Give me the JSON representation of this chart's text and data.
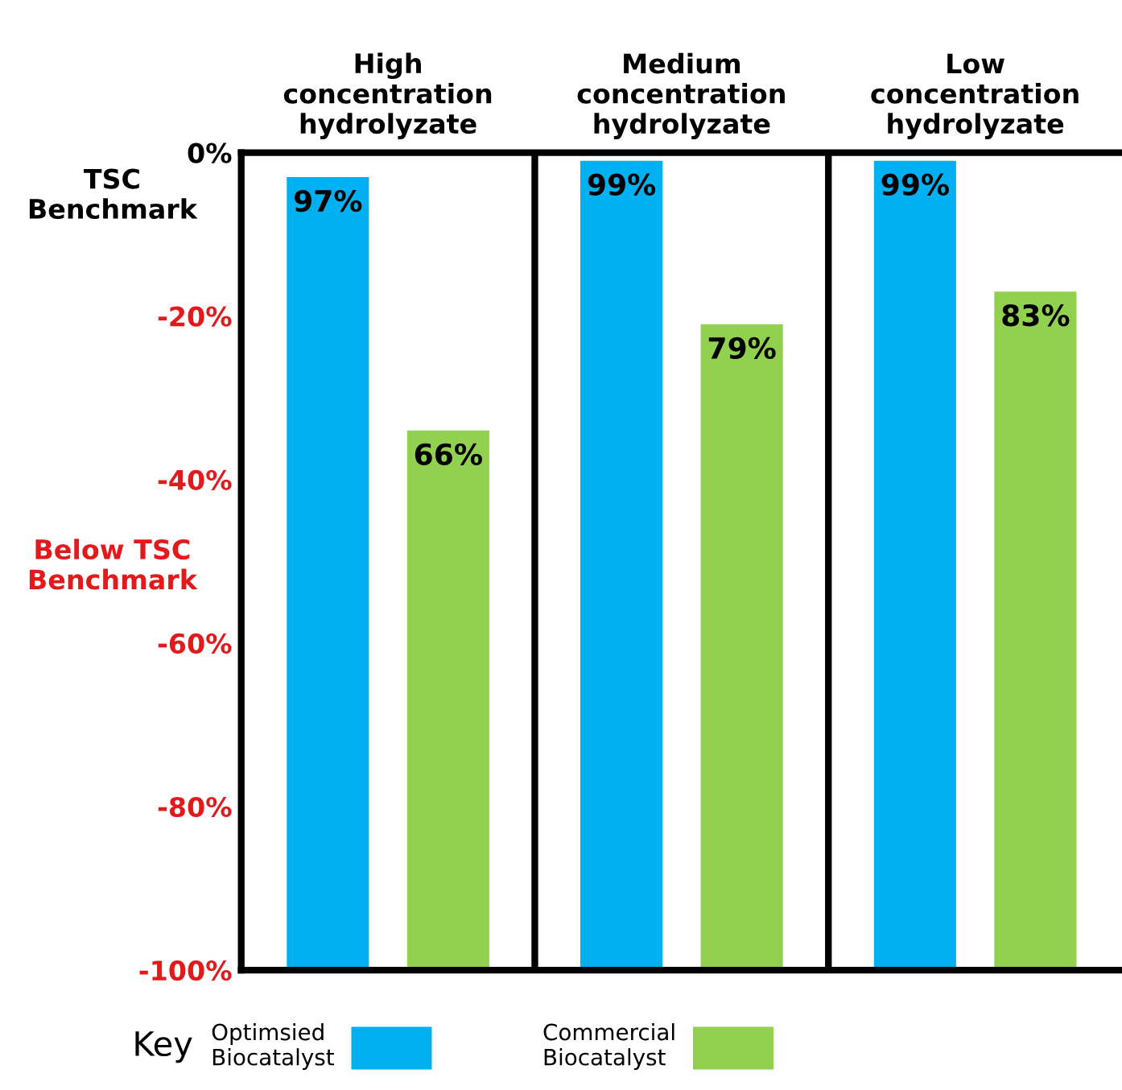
{
  "chart_data": {
    "type": "bar",
    "categories": [
      "High\nconcentration\nhydrolyzate",
      "Medium\nconcentration\nhydrolyzate",
      "Low\nconcentration\nhydrolyzate"
    ],
    "series": [
      {
        "name": "Optimsied\nBiocatalyst",
        "color": "#00b0f0",
        "values": [
          97,
          99,
          99
        ],
        "base": [
          -100,
          -100,
          -100
        ],
        "value_labels": [
          "97%",
          "99%",
          "99%"
        ]
      },
      {
        "name": "Commercial\nBiocatalyst",
        "color": "#92d050",
        "values": [
          66,
          79,
          83
        ],
        "base": [
          -100,
          -100,
          -100
        ],
        "value_labels": [
          "66%",
          "79%",
          "83%"
        ]
      }
    ],
    "ylim": [
      -100,
      0
    ],
    "yticks": [
      {
        "value": 0,
        "label": "0%"
      },
      {
        "value": -20,
        "label": "-20%"
      },
      {
        "value": -40,
        "label": "-40%"
      },
      {
        "value": -60,
        "label": "-60%"
      },
      {
        "value": -80,
        "label": "-80%"
      },
      {
        "value": -100,
        "label": "-100%"
      }
    ],
    "annotations": [
      "TSC\nBenchmark",
      "Below TSC\nBenchmark"
    ],
    "legend_title": "Key",
    "legend": "bottom",
    "grid": false
  }
}
